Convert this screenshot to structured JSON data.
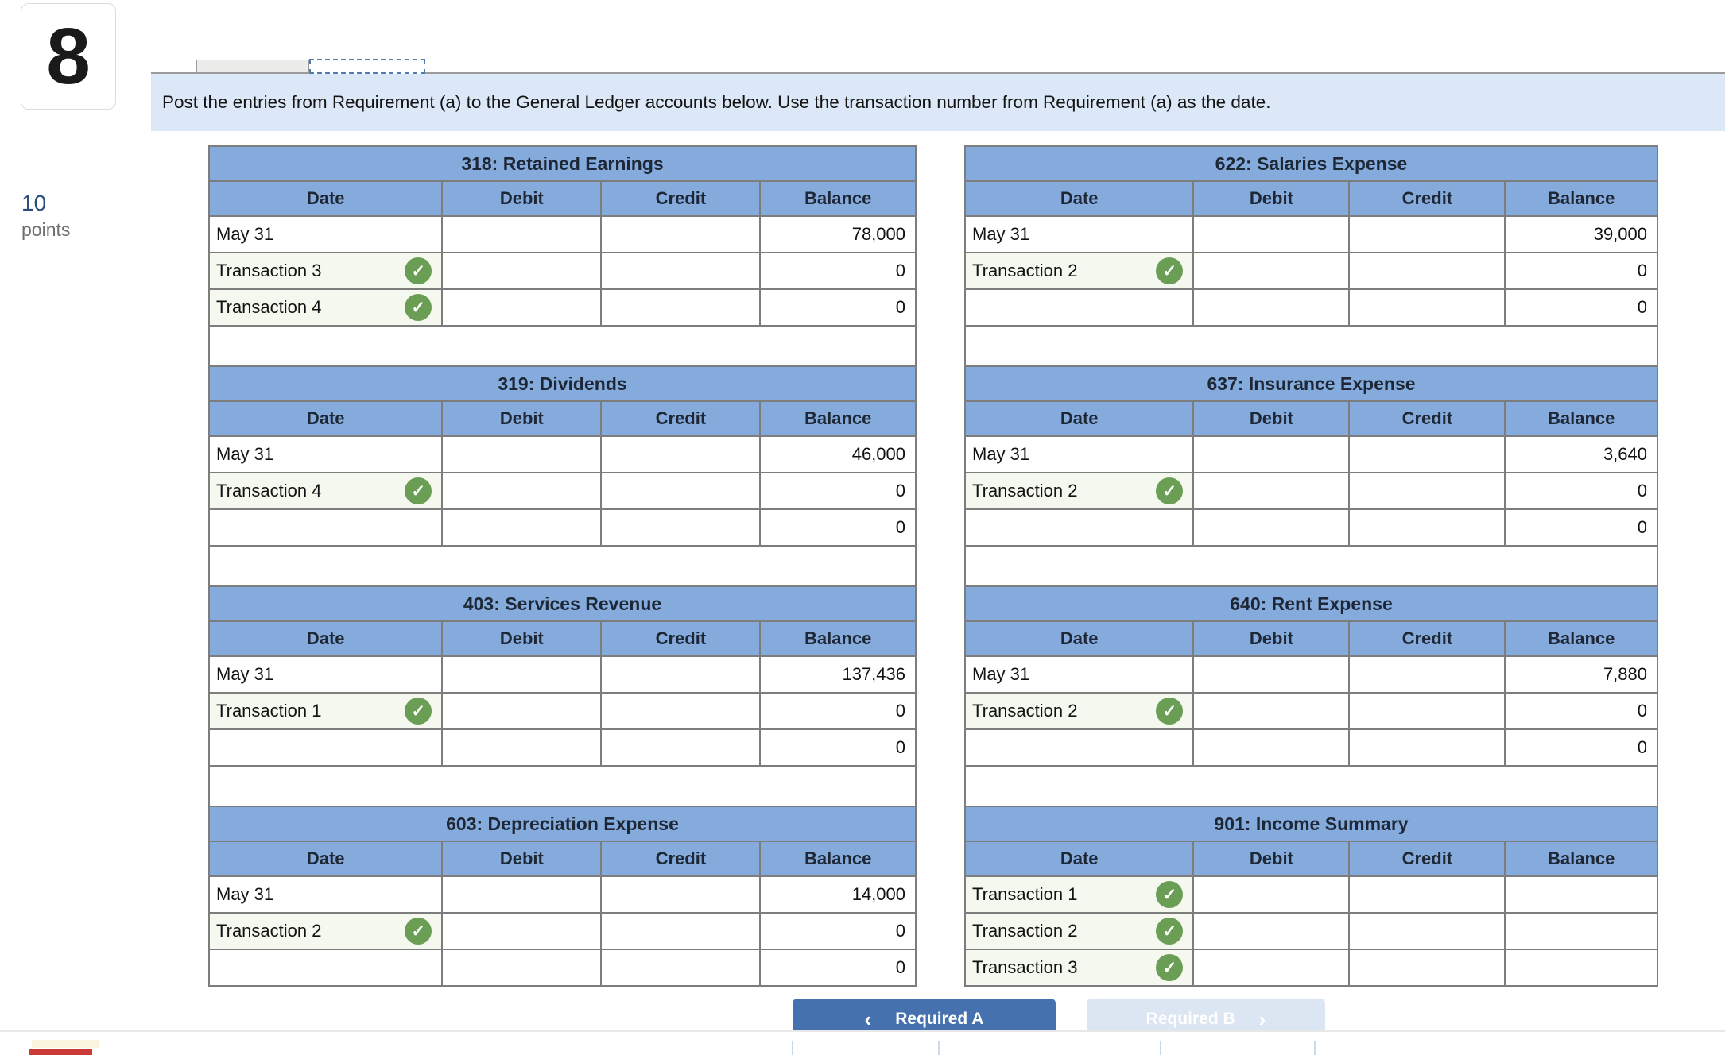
{
  "question": {
    "number": "8",
    "points_value": "10",
    "points_label": "points"
  },
  "banner": {
    "text": "Post the entries from Requirement (a) to the General Ledger accounts below. Use the transaction number from Requirement (a) as the date."
  },
  "table_headers": [
    "Date",
    "Debit",
    "Credit",
    "Balance"
  ],
  "icons": {
    "check": "✓",
    "chevron_left": "‹",
    "chevron_right": "›"
  },
  "ledgers": {
    "left": [
      {
        "code": "318",
        "title": "318: Retained Earnings",
        "rows": [
          {
            "date": "May 31",
            "debit": "",
            "credit": "",
            "balance": "78,000",
            "checked": false,
            "shaded": false
          },
          {
            "date": "Transaction 3",
            "debit": "",
            "credit": "",
            "balance": "0",
            "checked": true,
            "shaded": true
          },
          {
            "date": "Transaction 4",
            "debit": "",
            "credit": "",
            "balance": "0",
            "checked": true,
            "shaded": true
          }
        ]
      },
      {
        "code": "319",
        "title": "319: Dividends",
        "rows": [
          {
            "date": "May 31",
            "debit": "",
            "credit": "",
            "balance": "46,000",
            "checked": false,
            "shaded": false
          },
          {
            "date": "Transaction 4",
            "debit": "",
            "credit": "",
            "balance": "0",
            "checked": true,
            "shaded": true
          },
          {
            "date": "",
            "debit": "",
            "credit": "",
            "balance": "0",
            "checked": false,
            "shaded": false
          }
        ]
      },
      {
        "code": "403",
        "title": "403: Services Revenue",
        "rows": [
          {
            "date": "May 31",
            "debit": "",
            "credit": "",
            "balance": "137,436",
            "checked": false,
            "shaded": false
          },
          {
            "date": "Transaction 1",
            "debit": "",
            "credit": "",
            "balance": "0",
            "checked": true,
            "shaded": true
          },
          {
            "date": "",
            "debit": "",
            "credit": "",
            "balance": "0",
            "checked": false,
            "shaded": false
          }
        ]
      },
      {
        "code": "603",
        "title": "603: Depreciation Expense",
        "rows": [
          {
            "date": "May 31",
            "debit": "",
            "credit": "",
            "balance": "14,000",
            "checked": false,
            "shaded": false
          },
          {
            "date": "Transaction 2",
            "debit": "",
            "credit": "",
            "balance": "0",
            "checked": true,
            "shaded": true
          },
          {
            "date": "",
            "debit": "",
            "credit": "",
            "balance": "0",
            "checked": false,
            "shaded": false
          }
        ]
      }
    ],
    "right": [
      {
        "code": "622",
        "title": "622: Salaries Expense",
        "rows": [
          {
            "date": "May 31",
            "debit": "",
            "credit": "",
            "balance": "39,000",
            "checked": false,
            "shaded": false
          },
          {
            "date": "Transaction 2",
            "debit": "",
            "credit": "",
            "balance": "0",
            "checked": true,
            "shaded": true
          },
          {
            "date": "",
            "debit": "",
            "credit": "",
            "balance": "0",
            "checked": false,
            "shaded": false
          }
        ]
      },
      {
        "code": "637",
        "title": "637: Insurance Expense",
        "rows": [
          {
            "date": "May 31",
            "debit": "",
            "credit": "",
            "balance": "3,640",
            "checked": false,
            "shaded": false
          },
          {
            "date": "Transaction 2",
            "debit": "",
            "credit": "",
            "balance": "0",
            "checked": true,
            "shaded": true
          },
          {
            "date": "",
            "debit": "",
            "credit": "",
            "balance": "0",
            "checked": false,
            "shaded": false
          }
        ]
      },
      {
        "code": "640",
        "title": "640: Rent Expense",
        "rows": [
          {
            "date": "May 31",
            "debit": "",
            "credit": "",
            "balance": "7,880",
            "checked": false,
            "shaded": false
          },
          {
            "date": "Transaction 2",
            "debit": "",
            "credit": "",
            "balance": "0",
            "checked": true,
            "shaded": true
          },
          {
            "date": "",
            "debit": "",
            "credit": "",
            "balance": "0",
            "checked": false,
            "shaded": false
          }
        ]
      },
      {
        "code": "901",
        "title": "901: Income Summary",
        "rows": [
          {
            "date": "Transaction 1",
            "debit": "",
            "credit": "",
            "balance": "",
            "checked": true,
            "shaded": true
          },
          {
            "date": "Transaction 2",
            "debit": "",
            "credit": "",
            "balance": "",
            "checked": true,
            "shaded": true
          },
          {
            "date": "Transaction 3",
            "debit": "",
            "credit": "",
            "balance": "",
            "checked": true,
            "shaded": true
          }
        ]
      }
    ]
  },
  "footer": {
    "required_a_label": "Required A",
    "required_b_label": "Required B"
  },
  "colors": {
    "table_header_blue": "#85aadc",
    "banner_blue": "#dce8f7",
    "border_gray": "#7d7d7d",
    "check_green": "#6a9e54",
    "shaded_cell_green": "#f4f8ee",
    "primary_button_blue": "#4571ae",
    "secondary_button_blue": "#dce5f2",
    "points_blue": "#2c4c7c",
    "red_accent": "#cb3a36"
  }
}
